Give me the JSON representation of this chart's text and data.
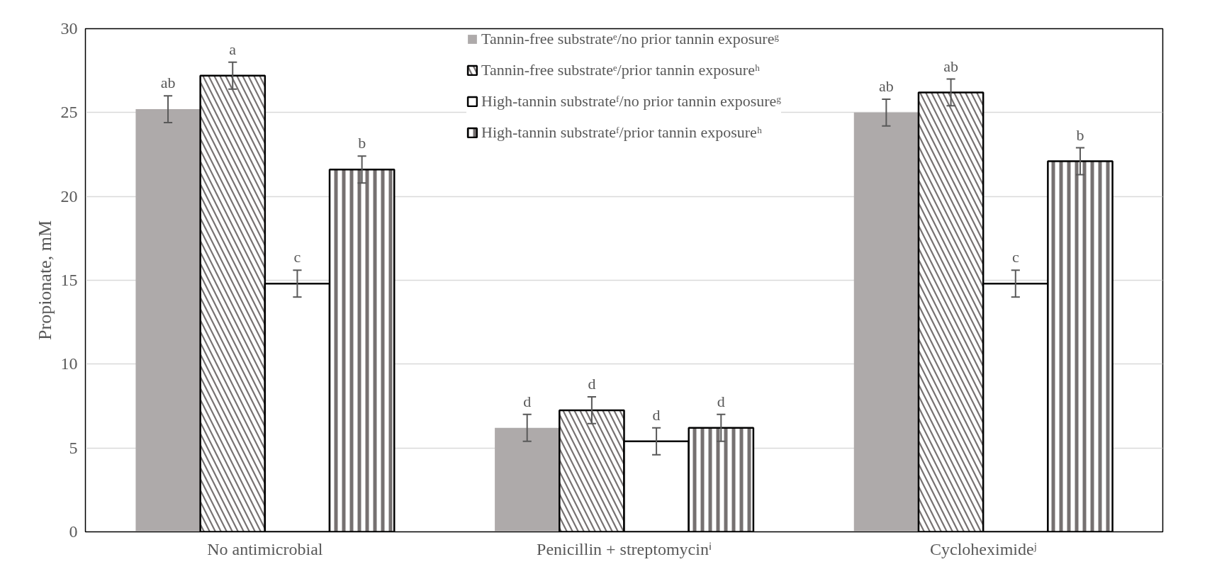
{
  "chart_data": {
    "type": "bar",
    "ylabel": "Propionate, mM",
    "categories": [
      "No antimicrobial",
      "Penicillin + streptomycinⁱ",
      "Cycloheximideʲ"
    ],
    "series": [
      {
        "name": "Tannin-free substrateᵉ/no prior tannin exposureᵍ",
        "color": "#aeaaaa",
        "values": [
          25.2,
          6.2,
          25.0
        ],
        "errors": [
          0.8,
          0.8,
          0.8
        ],
        "value_labels": [
          "ab",
          "d",
          "ab"
        ]
      },
      {
        "name": "Tannin-free substrateᵉ/prior tannin exposureʰ",
        "color": "#767171",
        "values": [
          27.2,
          7.25,
          26.2
        ],
        "errors": [
          0.8,
          0.8,
          0.8
        ],
        "value_labels": [
          "a",
          "d",
          "ab"
        ]
      },
      {
        "name": "High-tannin substrateᶠ/no prior tannin exposureᵍ",
        "color": "#ffffff",
        "values": [
          14.8,
          5.4,
          14.8
        ],
        "errors": [
          0.8,
          0.8,
          0.8
        ],
        "value_labels": [
          "c",
          "d",
          "c"
        ]
      },
      {
        "name": "High-tannin substrateᶠ/prior tannin exposureʰ",
        "color": "#767171",
        "values": [
          21.6,
          6.2,
          22.1
        ],
        "errors": [
          0.8,
          0.8,
          0.8
        ],
        "value_labels": [
          "b",
          "d",
          "b"
        ]
      }
    ],
    "ylim": [
      0,
      30
    ],
    "yticks": [
      0,
      5,
      10,
      15,
      20,
      25,
      30
    ],
    "grid": "y",
    "legend": "top"
  }
}
